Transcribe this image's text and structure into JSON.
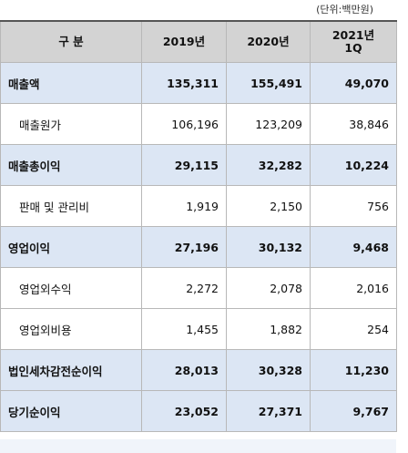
{
  "unit_note": "(단위:백만원)",
  "header": {
    "col0": "구  분",
    "col1": "2019년",
    "col2": "2020년",
    "col3_line1": "2021년",
    "col3_line2": "1Q"
  },
  "rows": [
    {
      "label": "매출액",
      "y2019": "135,311",
      "y2020": "155,491",
      "q2021": "49,070",
      "style": "bold"
    },
    {
      "label": "매출원가",
      "y2019": "106,196",
      "y2020": "123,209",
      "q2021": "38,846",
      "style": "sub"
    },
    {
      "label": "매출총이익",
      "y2019": "29,115",
      "y2020": "32,282",
      "q2021": "10,224",
      "style": "bold"
    },
    {
      "label": "판매 및 관리비",
      "y2019": "1,919",
      "y2020": "2,150",
      "q2021": "756",
      "style": "sub"
    },
    {
      "label": "영업이익",
      "y2019": "27,196",
      "y2020": "30,132",
      "q2021": "9,468",
      "style": "bold"
    },
    {
      "label": "영업외수익",
      "y2019": "2,272",
      "y2020": "2,078",
      "q2021": "2,016",
      "style": "sub"
    },
    {
      "label": "영업외비용",
      "y2019": "1,455",
      "y2020": "1,882",
      "q2021": "254",
      "style": "sub"
    },
    {
      "label": "법인세차감전순이익",
      "y2019": "28,013",
      "y2020": "30,328",
      "q2021": "11,230",
      "style": "bold"
    },
    {
      "label": "당기순이익",
      "y2019": "23,052",
      "y2020": "27,371",
      "q2021": "9,767",
      "style": "bold"
    }
  ],
  "colors": {
    "header_bg": "#d3d3d3",
    "bold_row_bg": "#dce6f4",
    "grid": "#b8b8b8"
  }
}
